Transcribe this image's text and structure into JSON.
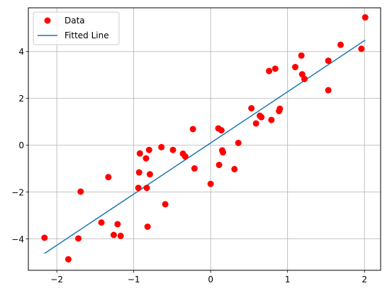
{
  "chart_data": {
    "type": "scatter",
    "title": "",
    "xlabel": "",
    "ylabel": "",
    "xlim": [
      -2.37,
      2.21
    ],
    "ylim": [
      -5.34,
      5.87
    ],
    "xticks": [
      -2,
      -1,
      0,
      1,
      2
    ],
    "yticks": [
      -4,
      -2,
      0,
      2,
      4
    ],
    "grid": true,
    "legend_position": "top-left",
    "series": [
      {
        "name": "Data",
        "kind": "points",
        "color": "#ff0000",
        "points": [
          [
            -2.16,
            -3.95
          ],
          [
            -1.85,
            -4.87
          ],
          [
            -1.72,
            -3.98
          ],
          [
            -1.69,
            -1.98
          ],
          [
            -1.42,
            -3.3
          ],
          [
            -1.33,
            -1.36
          ],
          [
            -1.26,
            -3.83
          ],
          [
            -1.21,
            -3.37
          ],
          [
            -1.17,
            -3.87
          ],
          [
            -0.94,
            -1.82
          ],
          [
            -0.93,
            -1.16
          ],
          [
            -0.92,
            -0.35
          ],
          [
            -0.84,
            -0.56
          ],
          [
            -0.83,
            -1.82
          ],
          [
            -0.82,
            -3.48
          ],
          [
            -0.8,
            -0.2
          ],
          [
            -0.79,
            -1.24
          ],
          [
            -0.64,
            -0.08
          ],
          [
            -0.59,
            -2.52
          ],
          [
            -0.49,
            -0.2
          ],
          [
            -0.36,
            -0.36
          ],
          [
            -0.33,
            -0.48
          ],
          [
            -0.23,
            0.69
          ],
          [
            -0.21,
            -0.99
          ],
          [
            0.0,
            -1.65
          ],
          [
            0.1,
            0.72
          ],
          [
            0.11,
            -0.84
          ],
          [
            0.14,
            0.64
          ],
          [
            0.15,
            -0.22
          ],
          [
            0.16,
            -0.3
          ],
          [
            0.31,
            -1.02
          ],
          [
            0.36,
            0.1
          ],
          [
            0.53,
            1.58
          ],
          [
            0.59,
            0.93
          ],
          [
            0.64,
            1.26
          ],
          [
            0.66,
            1.2
          ],
          [
            0.76,
            3.17
          ],
          [
            0.79,
            1.08
          ],
          [
            0.84,
            3.27
          ],
          [
            0.89,
            1.46
          ],
          [
            0.9,
            1.56
          ],
          [
            1.1,
            3.34
          ],
          [
            1.18,
            3.83
          ],
          [
            1.19,
            3.03
          ],
          [
            1.22,
            2.83
          ],
          [
            1.53,
            3.61
          ],
          [
            1.53,
            2.35
          ],
          [
            1.69,
            4.29
          ],
          [
            1.96,
            4.12
          ],
          [
            2.01,
            5.46
          ]
        ]
      },
      {
        "name": "Fitted Line",
        "kind": "line",
        "color": "#1f77b4",
        "points": [
          [
            -2.16,
            -4.62
          ],
          [
            2.01,
            4.49
          ]
        ]
      }
    ]
  }
}
